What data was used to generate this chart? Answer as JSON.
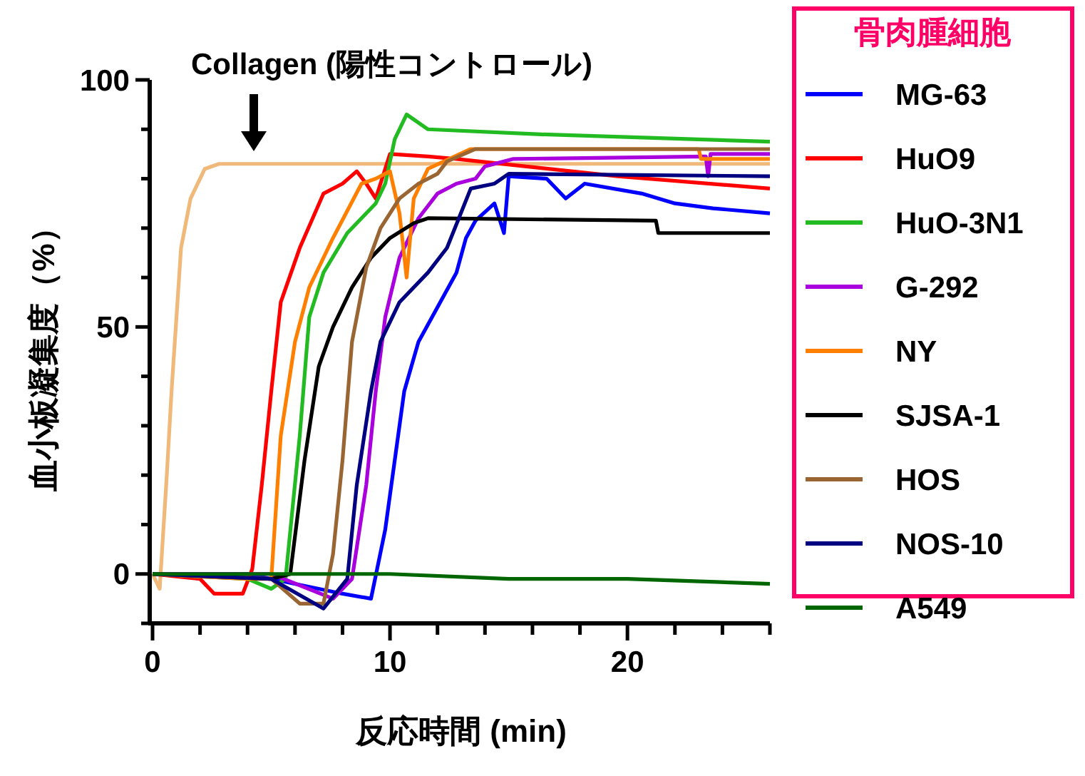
{
  "chart_data": {
    "type": "line",
    "xlabel": "反応時間 (min)",
    "ylabel": "血小板凝集度（%）",
    "legend_title": "骨肉腫細胞",
    "legend": "right",
    "xlim": [
      0,
      26
    ],
    "ylim": [
      -10,
      100
    ],
    "xticks": [
      0,
      {
        "value": 2,
        "label": null
      },
      {
        "value": 4,
        "label": null
      },
      {
        "value": 6,
        "label": null
      },
      {
        "value": 8,
        "label": null
      },
      10,
      {
        "value": 12,
        "label": null
      },
      {
        "value": 14,
        "label": null
      },
      {
        "value": 16,
        "label": null
      },
      {
        "value": 18,
        "label": null
      },
      20,
      {
        "value": 22,
        "label": null
      },
      {
        "value": 24,
        "label": null
      },
      {
        "value": 26,
        "label": null
      }
    ],
    "yticks": [
      {
        "value": -10,
        "label": null
      },
      0,
      {
        "value": 10,
        "label": null
      },
      {
        "value": 20,
        "label": null
      },
      {
        "value": 30,
        "label": null
      },
      {
        "value": 40,
        "label": null
      },
      50,
      {
        "value": 60,
        "label": null
      },
      {
        "value": 70,
        "label": null
      },
      {
        "value": 80,
        "label": null
      },
      {
        "value": 90,
        "label": null
      },
      100
    ],
    "annotations": [
      "Collagen (陽性コントロール)"
    ],
    "series": [
      {
        "color": "#f0b97a",
        "x": [
          0,
          0.3,
          0.6,
          0.8,
          1.2,
          1.6,
          2.2,
          2.8,
          26
        ],
        "values": [
          0,
          -3,
          20,
          37,
          66,
          76,
          82,
          83,
          83
        ]
      },
      {
        "name": "MG-63",
        "color": "#0000ff",
        "x": [
          0,
          4,
          8,
          9.2,
          9.8,
          10.2,
          10.6,
          11.2,
          12,
          12.8,
          13.2,
          13.6,
          14.4,
          14.8,
          15,
          16.6,
          17.4,
          18.2,
          20.6,
          22,
          23.6,
          26
        ],
        "values": [
          0,
          0,
          -4,
          -5,
          9,
          23,
          37,
          47,
          54,
          61,
          68,
          71.5,
          75,
          69,
          80.5,
          80,
          76,
          79,
          77,
          75,
          74,
          73
        ]
      },
      {
        "name": "HuO9",
        "color": "#ff0000",
        "x": [
          0,
          2,
          2.6,
          3.8,
          4.2,
          4.6,
          5,
          5.4,
          6.2,
          7.2,
          8,
          8.6,
          9,
          9.4,
          10,
          11.6,
          12.8,
          19.6,
          26
        ],
        "values": [
          0,
          -1,
          -4,
          -4,
          1,
          18,
          37,
          55,
          66,
          77,
          79,
          81.5,
          79,
          76,
          85,
          84.5,
          84,
          80.5,
          78
        ]
      },
      {
        "name": "HuO-3N1",
        "color": "#22bb22",
        "x": [
          0,
          4,
          5,
          5.6,
          6.2,
          6.6,
          7.2,
          8.2,
          9.4,
          9.8,
          10.2,
          10.7,
          11.6,
          16.2,
          26
        ],
        "values": [
          0,
          -1,
          -3,
          -1,
          28,
          52,
          61,
          69,
          75,
          79,
          88,
          93,
          90,
          89,
          87.5
        ]
      },
      {
        "name": "G-292",
        "color": "#aa00dd",
        "x": [
          0,
          5,
          7.6,
          8.4,
          9,
          9.4,
          9.8,
          10.4,
          11.2,
          12,
          12.8,
          13.6,
          14,
          15.2,
          23.3,
          23.4,
          23.5,
          26
        ],
        "values": [
          0,
          0,
          -5,
          -1,
          18,
          37,
          52,
          64,
          72,
          77,
          79,
          80,
          82.5,
          84,
          84.5,
          80.5,
          85,
          85
        ]
      },
      {
        "name": "NY",
        "color": "#ff8000",
        "x": [
          0,
          4,
          5,
          5.4,
          6,
          6.6,
          7.6,
          8.8,
          9.4,
          10,
          10.4,
          10.7,
          11,
          11.6,
          13.4,
          23,
          23.1,
          26
        ],
        "values": [
          0,
          -1,
          -1,
          28,
          47,
          58,
          68,
          79,
          80,
          81.5,
          73,
          60,
          76,
          82,
          86,
          86,
          84,
          84
        ]
      },
      {
        "name": "SJSA-1",
        "color": "#000000",
        "x": [
          0,
          5,
          5.8,
          6.4,
          7,
          7.6,
          8.4,
          9.2,
          10,
          11,
          11.6,
          21.2,
          21.3,
          26
        ],
        "values": [
          0,
          -1,
          0,
          23,
          42,
          50,
          58,
          64,
          68,
          71,
          72,
          71.5,
          69,
          69
        ]
      },
      {
        "name": "HOS",
        "color": "#996633",
        "x": [
          0,
          5,
          6.2,
          7.2,
          7.6,
          8,
          8.4,
          9,
          9.6,
          10.4,
          11.2,
          12,
          12.4,
          13.6,
          26
        ],
        "values": [
          0,
          -1,
          -6,
          -6,
          4,
          23,
          47,
          62,
          70,
          76,
          79,
          81,
          83.5,
          86,
          86
        ]
      },
      {
        "name": "NOS-10",
        "color": "#000080",
        "x": [
          0,
          5,
          7.2,
          8.2,
          8.6,
          9.2,
          9.6,
          10.4,
          11.6,
          12.4,
          13.4,
          14.4,
          15,
          26
        ],
        "values": [
          0,
          -1,
          -7,
          -1,
          18,
          37,
          47,
          55,
          61,
          66,
          78,
          79,
          81,
          80.5
        ]
      },
      {
        "name": "A549",
        "color": "#006600",
        "x": [
          0,
          5,
          10,
          15,
          20,
          26
        ],
        "values": [
          0,
          0,
          0,
          -1,
          -1,
          -2
        ]
      }
    ]
  }
}
